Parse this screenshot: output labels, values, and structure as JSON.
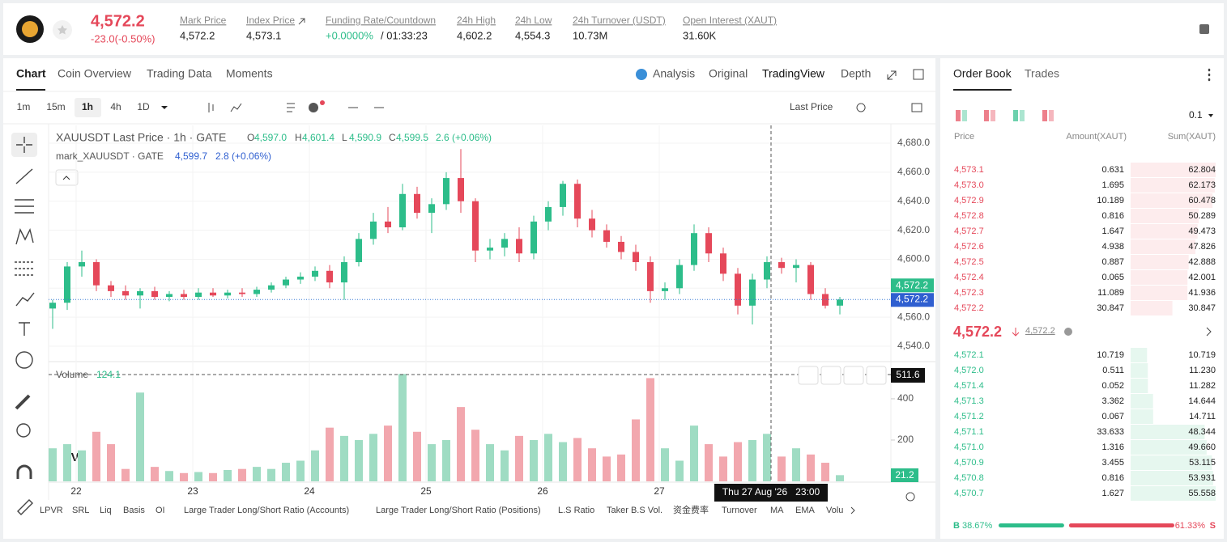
{
  "header": {
    "price": "4,572.2",
    "change": "-23.0(-0.50%)",
    "stats": [
      {
        "label": "Mark Price",
        "value": "4,572.2"
      },
      {
        "label": "Index Price",
        "value": "4,573.1"
      },
      {
        "label": "Funding Rate/Countdown",
        "value": "+0.0000%",
        "extra": "/ 01:33:23"
      },
      {
        "label": "24h High",
        "value": "4,602.2"
      },
      {
        "label": "24h Low",
        "value": "4,554.3"
      },
      {
        "label": "24h Turnover (USDT)",
        "value": "10.73M"
      },
      {
        "label": "Open Interest (XAUT)",
        "value": "31.60K"
      }
    ]
  },
  "tabs": [
    "Chart",
    "Coin Overview",
    "Trading Data",
    "Moments"
  ],
  "views": [
    "Analysis",
    "Original",
    "TradingView",
    "Depth"
  ],
  "intervals": [
    "1m",
    "15m",
    "1h",
    "4h",
    "1D"
  ],
  "price_type": "Last Price",
  "chart": {
    "type": "candlestick",
    "title": "XAUUSDT Last Price · 1h · GATE",
    "ohlc_keys": [
      "O",
      "H",
      "L",
      "C"
    ],
    "ohlc": [
      "4,597.0",
      "4,601.4",
      "4,590.9",
      "4,599.5"
    ],
    "change": "2.6 (+0.06%)",
    "mark_title": "mark_XAUUSDT · GATE",
    "mark_value": "4,599.7",
    "mark_change": "2.8 (+0.06%)",
    "x_labels": [
      "22",
      "23",
      "24",
      "25",
      "26",
      "27"
    ],
    "ylim": [
      4529.4,
      4692.3
    ],
    "yticks": [
      {
        "value": 4540,
        "label": "4,540.0"
      },
      {
        "value": 4560,
        "label": "4,560.0"
      },
      {
        "value": 4580,
        "label": "4,580.0"
      },
      {
        "value": 4600,
        "label": "4,600.0"
      },
      {
        "value": 4620,
        "label": "4,620.0"
      },
      {
        "value": 4640,
        "label": "4,640.0"
      },
      {
        "value": 4660,
        "label": "4,660.0"
      },
      {
        "value": 4680,
        "label": "4,680.0"
      }
    ],
    "last_price": 4572.2,
    "last_label": "4,572.2",
    "candles": [
      [
        4566,
        4572,
        4552,
        4570
      ],
      [
        4570,
        4598,
        4565,
        4595
      ],
      [
        4595,
        4606,
        4588,
        4598
      ],
      [
        4598,
        4600,
        4578,
        4582
      ],
      [
        4582,
        4585,
        4574,
        4578
      ],
      [
        4578,
        4582,
        4572,
        4575
      ],
      [
        4575,
        4580,
        4566,
        4578
      ],
      [
        4578,
        4581,
        4572,
        4574
      ],
      [
        4574,
        4578,
        4571,
        4576
      ],
      [
        4576,
        4579,
        4572,
        4574
      ],
      [
        4574,
        4580,
        4572,
        4577
      ],
      [
        4577,
        4580,
        4574,
        4575
      ],
      [
        4575,
        4579,
        4573,
        4577
      ],
      [
        4577,
        4580,
        4574,
        4576
      ],
      [
        4576,
        4581,
        4574,
        4579
      ],
      [
        4579,
        4584,
        4577,
        4582
      ],
      [
        4582,
        4588,
        4580,
        4586
      ],
      [
        4586,
        4591,
        4583,
        4588
      ],
      [
        4588,
        4595,
        4585,
        4592
      ],
      [
        4592,
        4596,
        4580,
        4584
      ],
      [
        4584,
        4602,
        4572,
        4598
      ],
      [
        4598,
        4618,
        4595,
        4614
      ],
      [
        4614,
        4632,
        4610,
        4626
      ],
      [
        4626,
        4636,
        4618,
        4622
      ],
      [
        4622,
        4652,
        4620,
        4645
      ],
      [
        4645,
        4650,
        4628,
        4632
      ],
      [
        4632,
        4642,
        4618,
        4638
      ],
      [
        4638,
        4660,
        4634,
        4656
      ],
      [
        4656,
        4676,
        4632,
        4640
      ],
      [
        4640,
        4642,
        4598,
        4606
      ],
      [
        4606,
        4614,
        4600,
        4608
      ],
      [
        4608,
        4618,
        4602,
        4614
      ],
      [
        4614,
        4622,
        4598,
        4604
      ],
      [
        4604,
        4630,
        4600,
        4626
      ],
      [
        4626,
        4640,
        4620,
        4636
      ],
      [
        4636,
        4654,
        4630,
        4652
      ],
      [
        4652,
        4655,
        4622,
        4628
      ],
      [
        4628,
        4634,
        4615,
        4620
      ],
      [
        4620,
        4624,
        4608,
        4612
      ],
      [
        4612,
        4616,
        4600,
        4605
      ],
      [
        4605,
        4610,
        4592,
        4598
      ],
      [
        4598,
        4602,
        4570,
        4578
      ],
      [
        4578,
        4584,
        4572,
        4580
      ],
      [
        4580,
        4600,
        4576,
        4596
      ],
      [
        4596,
        4624,
        4592,
        4618
      ],
      [
        4618,
        4622,
        4598,
        4604
      ],
      [
        4604,
        4608,
        4585,
        4590
      ],
      [
        4590,
        4594,
        4562,
        4568
      ],
      [
        4568,
        4590,
        4555,
        4586
      ],
      [
        4586,
        4602,
        4580,
        4598
      ],
      [
        4598,
        4601,
        4590,
        4594
      ],
      [
        4594,
        4600,
        4584,
        4596
      ],
      [
        4596,
        4598,
        4572,
        4576
      ],
      [
        4576,
        4580,
        4566,
        4568
      ],
      [
        4568,
        4574,
        4562,
        4572.2
      ]
    ],
    "volume_title": "Volume",
    "volume_value": "124.1",
    "volume": [
      160,
      180,
      150,
      240,
      180,
      60,
      430,
      70,
      50,
      40,
      45,
      40,
      55,
      60,
      70,
      60,
      90,
      100,
      150,
      260,
      220,
      200,
      230,
      270,
      520,
      240,
      180,
      200,
      360,
      250,
      180,
      150,
      220,
      200,
      230,
      190,
      210,
      160,
      120,
      130,
      300,
      500,
      160,
      100,
      270,
      180,
      120,
      190,
      200,
      230,
      120,
      160,
      130,
      90,
      30
    ],
    "vlim": [
      0,
      580
    ],
    "vticks": [
      200,
      400
    ],
    "volume_last_label": "21.2",
    "crosshair_label": "511.6",
    "crosshair_time": "Thu 27 Aug '26   23:00",
    "indicators": [
      "LPVR",
      "SRL",
      "Liq",
      "Basis",
      "OI",
      "Large Trader Long/Short Ratio (Accounts)",
      "Large Trader Long/Short Ratio (Positions)",
      "L.S Ratio",
      "Taker B.S Vol.",
      "资金费率",
      "Turnover",
      "MA",
      "EMA",
      "Volu"
    ]
  },
  "order_book": {
    "tabs": [
      "Order Book",
      "Trades"
    ],
    "precision": "0.1",
    "headers": [
      "Price",
      "Amount(XAUT)",
      "Sum(XAUT)"
    ],
    "asks": [
      {
        "price": "4,573.1",
        "amount": "0.631",
        "sum": 62.804,
        "sum_label": "62.804"
      },
      {
        "price": "4,573.0",
        "amount": "1.695",
        "sum": 62.173,
        "sum_label": "62.173"
      },
      {
        "price": "4,572.9",
        "amount": "10.189",
        "sum": 60.478,
        "sum_label": "60.478"
      },
      {
        "price": "4,572.8",
        "amount": "0.816",
        "sum": 50.289,
        "sum_label": "50.289"
      },
      {
        "price": "4,572.7",
        "amount": "1.647",
        "sum": 49.473,
        "sum_label": "49.473"
      },
      {
        "price": "4,572.6",
        "amount": "4.938",
        "sum": 47.826,
        "sum_label": "47.826"
      },
      {
        "price": "4,572.5",
        "amount": "0.887",
        "sum": 42.888,
        "sum_label": "42.888"
      },
      {
        "price": "4,572.4",
        "amount": "0.065",
        "sum": 42.001,
        "sum_label": "42.001"
      },
      {
        "price": "4,572.3",
        "amount": "11.089",
        "sum": 41.936,
        "sum_label": "41.936"
      },
      {
        "price": "4,572.2",
        "amount": "30.847",
        "sum": 30.847,
        "sum_label": "30.847"
      }
    ],
    "last": "4,572.2",
    "mark": "4,572.2",
    "bids": [
      {
        "price": "4,572.1",
        "amount": "10.719",
        "sum": 10.719,
        "sum_label": "10.719"
      },
      {
        "price": "4,572.0",
        "amount": "0.511",
        "sum": 11.23,
        "sum_label": "11.230"
      },
      {
        "price": "4,571.4",
        "amount": "0.052",
        "sum": 11.282,
        "sum_label": "11.282"
      },
      {
        "price": "4,571.3",
        "amount": "3.362",
        "sum": 14.644,
        "sum_label": "14.644"
      },
      {
        "price": "4,571.2",
        "amount": "0.067",
        "sum": 14.711,
        "sum_label": "14.711"
      },
      {
        "price": "4,571.1",
        "amount": "33.633",
        "sum": 48.344,
        "sum_label": "48.344"
      },
      {
        "price": "4,571.0",
        "amount": "1.316",
        "sum": 49.66,
        "sum_label": "49.660"
      },
      {
        "price": "4,570.9",
        "amount": "3.455",
        "sum": 53.115,
        "sum_label": "53.115"
      },
      {
        "price": "4,570.8",
        "amount": "0.816",
        "sum": 53.931,
        "sum_label": "53.931"
      },
      {
        "price": "4,570.7",
        "amount": "1.627",
        "sum": 55.558,
        "sum_label": "55.558"
      }
    ],
    "buy_key": "B",
    "buy": 38.67,
    "buy_label": "38.67%",
    "sell_key": "S",
    "sell": 61.33,
    "sell_label": "61.33%"
  }
}
